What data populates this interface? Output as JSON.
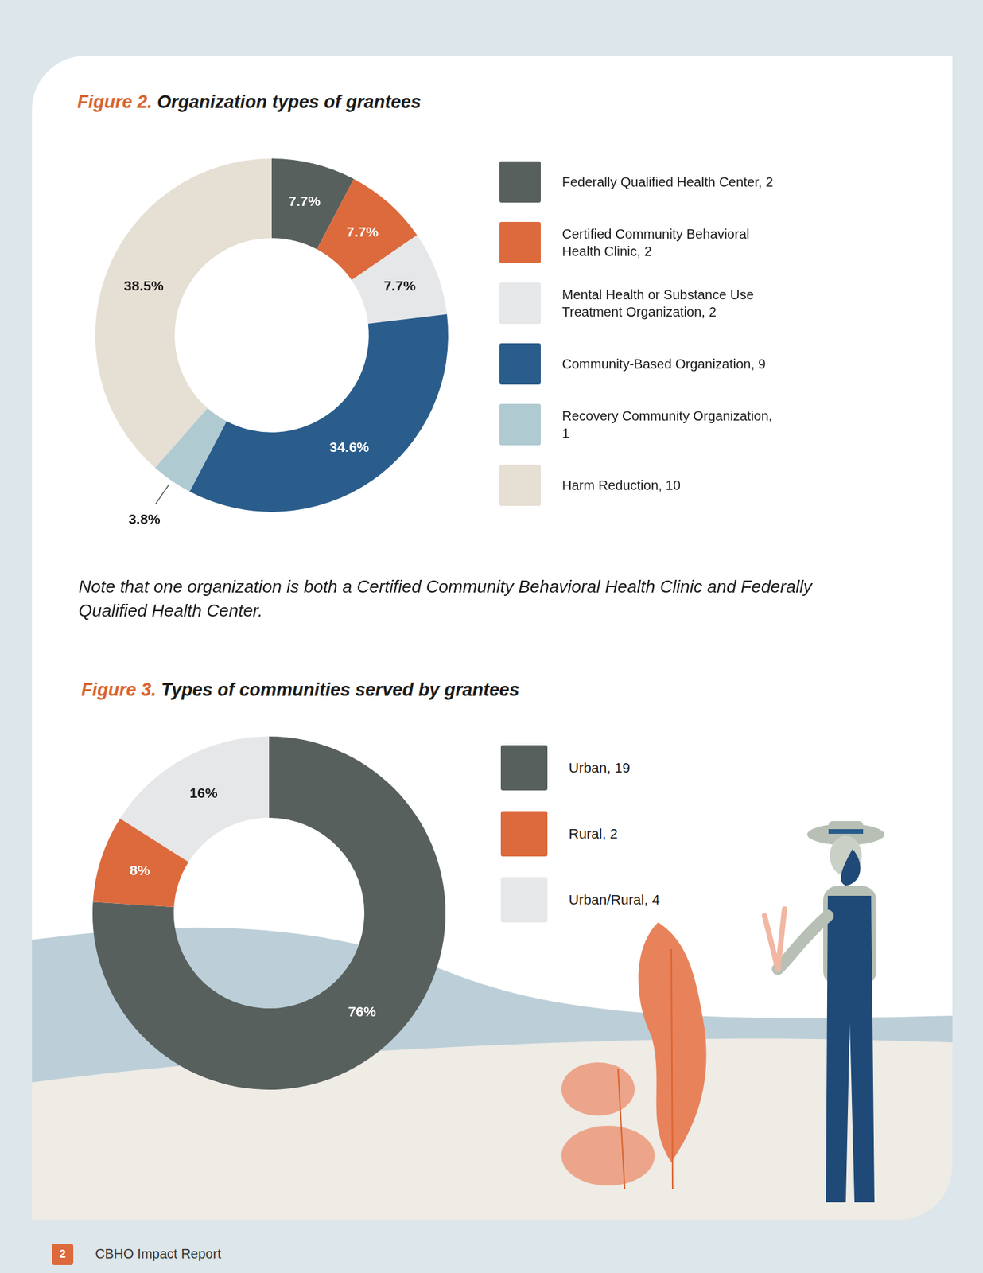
{
  "chart_data": [
    {
      "type": "doughnut",
      "title": "Figure 2. Organization types of grantees",
      "categories": [
        "Federally Qualified Health Center, 2",
        "Certified Community Behavioral Health Clinic, 2",
        "Mental Health or Substance Use Treatment Organization, 2",
        "Community-Based Organization, 9",
        "Recovery Community Organization, 1",
        "Harm Reduction, 10"
      ],
      "values": [
        7.7,
        7.7,
        7.7,
        34.6,
        3.8,
        38.5
      ],
      "value_labels": [
        "7.7%",
        "7.7%",
        "7.7%",
        "34.6%",
        "3.8%",
        "38.5%"
      ],
      "colors": [
        "#58605d",
        "#dc6a3c",
        "#e6e7e9",
        "#2a5d8c",
        "#b0cad2",
        "#e6dfd3"
      ],
      "data_labels": true,
      "legend": "right"
    },
    {
      "type": "doughnut",
      "title": "Figure 3. Types of communities served by grantees",
      "categories": [
        "Urban, 19",
        "Rural, 2",
        "Urban/Rural, 4"
      ],
      "values": [
        76,
        8,
        16
      ],
      "value_labels": [
        "76%",
        "8%",
        "16%"
      ],
      "colors": [
        "#58605d",
        "#dc6a3c",
        "#e6e7e9"
      ],
      "data_labels": true,
      "legend": "right"
    }
  ],
  "note": "Note that one organization is both a Certified Community Behavioral Health Clinic and Federally Qualified Health Center.",
  "footer": {
    "page": "2",
    "text": "CBHO Impact Report"
  }
}
